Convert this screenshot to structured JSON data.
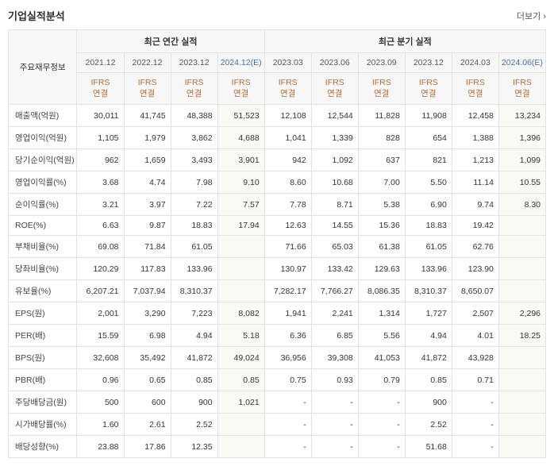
{
  "title": "기업실적분석",
  "more": "더보기",
  "rowhead_label": "주요재무정보",
  "group_headers": {
    "annual": "최근 연간 실적",
    "quarterly": "최근 분기 실적"
  },
  "periods": [
    "2021.12",
    "2022.12",
    "2023.12",
    "2024.12(E)",
    "2023.03",
    "2023.06",
    "2023.09",
    "2023.12",
    "2024.03",
    "2024.06(E)"
  ],
  "period_is_estimate": [
    false,
    false,
    false,
    true,
    false,
    false,
    false,
    false,
    false,
    true
  ],
  "ifrs_label": "IFRS",
  "ifrs_sub": "연결",
  "rows": [
    {
      "label": "매출액(억원)",
      "cells": [
        "30,011",
        "41,745",
        "48,388",
        "51,523",
        "12,108",
        "12,544",
        "11,828",
        "11,908",
        "12,458",
        "13,234"
      ]
    },
    {
      "label": "영업이익(억원)",
      "cells": [
        "1,105",
        "1,979",
        "3,862",
        "4,688",
        "1,041",
        "1,339",
        "828",
        "654",
        "1,388",
        "1,396"
      ]
    },
    {
      "label": "당기순이익(억원)",
      "cells": [
        "962",
        "1,659",
        "3,493",
        "3,901",
        "942",
        "1,092",
        "637",
        "821",
        "1,213",
        "1,099"
      ]
    },
    {
      "label": "영업이익률(%)",
      "cells": [
        "3.68",
        "4.74",
        "7.98",
        "9.10",
        "8.60",
        "10.68",
        "7.00",
        "5.50",
        "11.14",
        "10.55"
      ]
    },
    {
      "label": "순이익률(%)",
      "cells": [
        "3.21",
        "3.97",
        "7.22",
        "7.57",
        "7.78",
        "8.71",
        "5.38",
        "6.90",
        "9.74",
        "8.30"
      ]
    },
    {
      "label": "ROE(%)",
      "cells": [
        "6.63",
        "9.87",
        "18.83",
        "17.94",
        "12.63",
        "14.55",
        "15.36",
        "18.83",
        "19.42",
        ""
      ]
    },
    {
      "label": "부채비율(%)",
      "cells": [
        "69.08",
        "71.84",
        "61.05",
        "",
        "71.66",
        "65.03",
        "61.38",
        "61.05",
        "62.76",
        ""
      ]
    },
    {
      "label": "당좌비율(%)",
      "cells": [
        "120.29",
        "117.83",
        "133.96",
        "",
        "130.97",
        "133.42",
        "129.63",
        "133.96",
        "123.90",
        ""
      ]
    },
    {
      "label": "유보율(%)",
      "cells": [
        "6,207.21",
        "7,037.94",
        "8,310.37",
        "",
        "7,282.17",
        "7,766.27",
        "8,086.35",
        "8,310.37",
        "8,650.07",
        ""
      ]
    },
    {
      "label": "EPS(원)",
      "cells": [
        "2,001",
        "3,290",
        "7,223",
        "8,082",
        "1,941",
        "2,241",
        "1,314",
        "1,727",
        "2,507",
        "2,296"
      ]
    },
    {
      "label": "PER(배)",
      "cells": [
        "15.59",
        "6.98",
        "4.94",
        "5.18",
        "6.36",
        "6.85",
        "5.56",
        "4.94",
        "4.01",
        "18.25"
      ]
    },
    {
      "label": "BPS(원)",
      "cells": [
        "32,608",
        "35,492",
        "41,872",
        "49,024",
        "36,956",
        "39,308",
        "41,053",
        "41,872",
        "43,928",
        ""
      ]
    },
    {
      "label": "PBR(배)",
      "cells": [
        "0.96",
        "0.65",
        "0.85",
        "0.85",
        "0.75",
        "0.93",
        "0.79",
        "0.85",
        "0.71",
        ""
      ]
    },
    {
      "label": "주당배당금(원)",
      "cells": [
        "500",
        "600",
        "900",
        "1,021",
        "-",
        "-",
        "-",
        "900",
        "-",
        ""
      ]
    },
    {
      "label": "시가배당률(%)",
      "cells": [
        "1.60",
        "2.61",
        "2.52",
        "",
        "-",
        "-",
        "-",
        "2.52",
        "-",
        ""
      ]
    },
    {
      "label": "배당성향(%)",
      "cells": [
        "23.88",
        "17.86",
        "12.35",
        "",
        "-",
        "-",
        "-",
        "51.68",
        "-",
        ""
      ]
    }
  ],
  "styles": {
    "estimate_bg": "#fafaf5",
    "estimate_text": "#4a6ea8",
    "ifrs_text": "#b06c3a",
    "border": "#e3e3e3",
    "header_bg": "#f7f7f7"
  }
}
